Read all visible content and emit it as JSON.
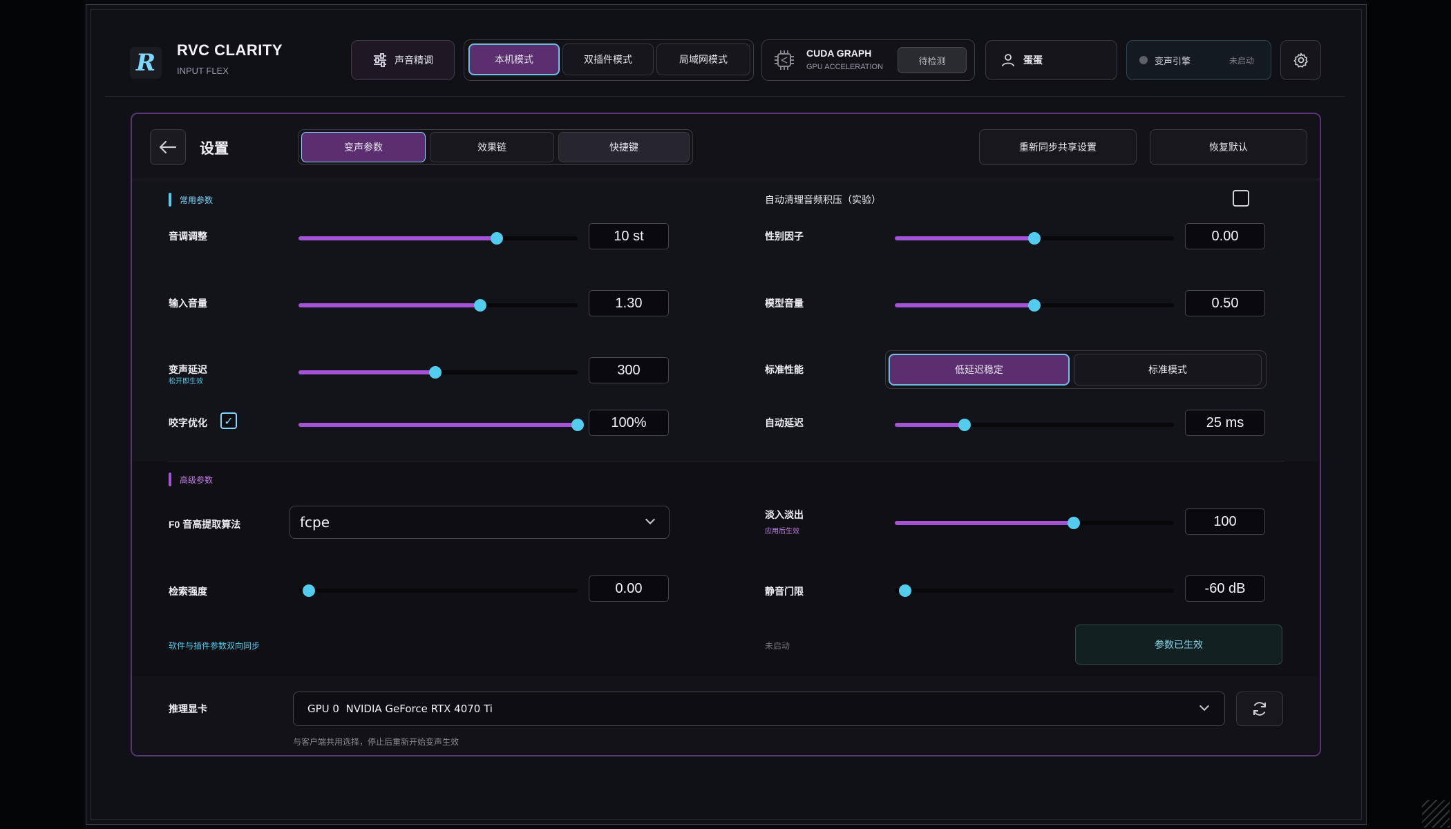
{
  "app": {
    "logo_letter": "R",
    "title": "RVC CLARITY",
    "subtitle": "INPUT FLEX"
  },
  "toolbar": {
    "voice_tune_label": "声音精调",
    "modes": [
      {
        "label": "本机模式",
        "active": true
      },
      {
        "label": "双插件模式",
        "active": false
      },
      {
        "label": "局域网模式",
        "active": false
      }
    ],
    "cuda": {
      "title": "CUDA GRAPH",
      "subtitle": "GPU ACCELERATION",
      "status": "待检测"
    },
    "user_name": "蛋蛋",
    "engine": {
      "label": "变声引擎",
      "status": "未启动"
    }
  },
  "settings": {
    "title": "设置",
    "tabs": [
      {
        "label": "变声参数",
        "active": true
      },
      {
        "label": "效果链",
        "active": false
      },
      {
        "label": "快捷键",
        "active": false
      }
    ],
    "resync_label": "重新同步共享设置",
    "reset_label": "恢复默认",
    "common": {
      "section_label": "常用参数",
      "pitch": {
        "label": "音调调整",
        "value_text": "10 st",
        "fraction": 0.71
      },
      "input_volume": {
        "label": "输入音量",
        "value_text": "1.30",
        "fraction": 0.65
      },
      "latency": {
        "label": "变声延迟",
        "note": "松开即生效",
        "value_text": "300",
        "fraction": 0.49
      },
      "articulation": {
        "label": "咬字优化",
        "checked": true,
        "value_text": "100%",
        "fraction": 1.0
      },
      "auto_clear": {
        "label": "自动清理音频积压（实验）",
        "checked": false
      },
      "gender": {
        "label": "性别因子",
        "value_text": "0.00",
        "fraction": 0.5
      },
      "model_volume": {
        "label": "模型音量",
        "value_text": "0.50",
        "fraction": 0.5
      },
      "performance": {
        "label": "标准性能",
        "options": [
          {
            "label": "低延迟稳定",
            "active": true
          },
          {
            "label": "标准模式",
            "active": false
          }
        ]
      },
      "auto_latency": {
        "label": "自动延迟",
        "value_text": "25 ms",
        "fraction": 0.25
      }
    },
    "advanced": {
      "section_label": "高级参数",
      "f0": {
        "label": "F0 音高提取算法",
        "value": "fcpe"
      },
      "fade": {
        "label": "淡入淡出",
        "note": "应用后生效",
        "value_text": "100",
        "fraction": 0.64
      },
      "index_strength": {
        "label": "检索强度",
        "value_text": "0.00",
        "fraction": 0.0
      },
      "silence_gate": {
        "label": "静音门限",
        "value_text": "-60 dB",
        "fraction": 0.0
      },
      "sync_note": "软件与插件参数双向同步",
      "sync_status": "未启动",
      "applied_label": "参数已生效"
    },
    "gpu": {
      "label": "推理显卡",
      "value": "GPU 0  NVIDIA GeForce RTX 4070 Ti",
      "note": "与客户端共用选择，停止后重新开始变声生效"
    }
  },
  "colors": {
    "accent_purple": "#5a2e6f",
    "slider_fill": "#a553d6",
    "knob_cyan": "#52cdee",
    "accent_cyan": "#7fd8ff"
  }
}
